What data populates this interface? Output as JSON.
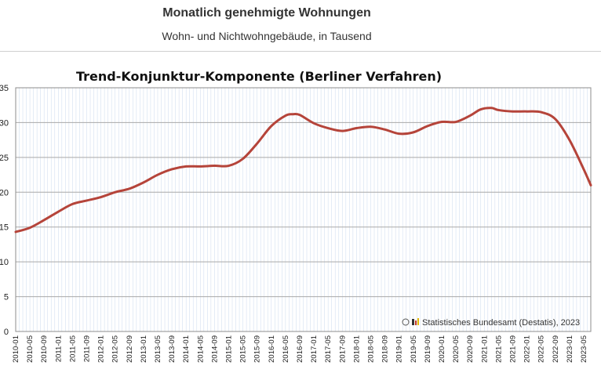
{
  "header": {
    "title": "Monatlich genehmigte Wohnungen",
    "subtitle": "Wohn- und Nichtwohngebäude, in Tausend"
  },
  "chart_data": {
    "type": "line",
    "title": "Trend-Konjunktur-Komponente (Berliner Verfahren)",
    "credit": "Statistisches Bundesamt (Destatis), 2023",
    "xlabel": "",
    "ylabel": "",
    "ylim": [
      0,
      35
    ],
    "yticks": [
      0,
      5,
      10,
      15,
      20,
      25,
      30,
      35
    ],
    "grid": true,
    "legend": "none",
    "x_ticks": [
      "2010-01",
      "2010-05",
      "2010-09",
      "2011-01",
      "2011-05",
      "2011-09",
      "2012-01",
      "2012-05",
      "2012-09",
      "2013-01",
      "2013-05",
      "2013-09",
      "2014-01",
      "2014-05",
      "2014-09",
      "2015-01",
      "2015-05",
      "2015-09",
      "2016-01",
      "2016-05",
      "2016-09",
      "2017-01",
      "2017-05",
      "2017-09",
      "2018-01",
      "2018-05",
      "2018-09",
      "2019-01",
      "2019-05",
      "2019-09",
      "2020-01",
      "2020-05",
      "2020-09",
      "2021-01",
      "2021-05",
      "2021-09",
      "2022-01",
      "2022-05",
      "2022-09",
      "2023-01",
      "2023-05"
    ],
    "colors": {
      "line": "#b5443a",
      "grid": "#a9a9a9",
      "minor_grid": "#d3dff0"
    },
    "series": [
      {
        "name": "",
        "x": [
          "2010-01",
          "2010-05",
          "2010-09",
          "2011-01",
          "2011-05",
          "2011-09",
          "2012-01",
          "2012-05",
          "2012-09",
          "2013-01",
          "2013-05",
          "2013-09",
          "2014-01",
          "2014-05",
          "2014-09",
          "2015-01",
          "2015-05",
          "2015-09",
          "2016-01",
          "2016-05",
          "2016-07",
          "2016-09",
          "2017-01",
          "2017-05",
          "2017-09",
          "2018-01",
          "2018-05",
          "2018-09",
          "2019-01",
          "2019-05",
          "2019-09",
          "2020-01",
          "2020-05",
          "2020-09",
          "2020-12",
          "2021-03",
          "2021-05",
          "2021-09",
          "2022-01",
          "2022-05",
          "2022-09",
          "2023-01",
          "2023-05",
          "2023-07"
        ],
        "values": [
          14.3,
          14.9,
          16.0,
          17.2,
          18.3,
          18.8,
          19.3,
          20.0,
          20.5,
          21.4,
          22.5,
          23.3,
          23.7,
          23.7,
          23.8,
          23.8,
          24.8,
          27.0,
          29.5,
          31.0,
          31.2,
          31.1,
          29.9,
          29.2,
          28.8,
          29.2,
          29.4,
          29.0,
          28.4,
          28.6,
          29.5,
          30.1,
          30.1,
          31.0,
          31.9,
          32.1,
          31.8,
          31.6,
          31.6,
          31.5,
          30.5,
          27.5,
          23.3,
          21.0
        ]
      }
    ]
  }
}
